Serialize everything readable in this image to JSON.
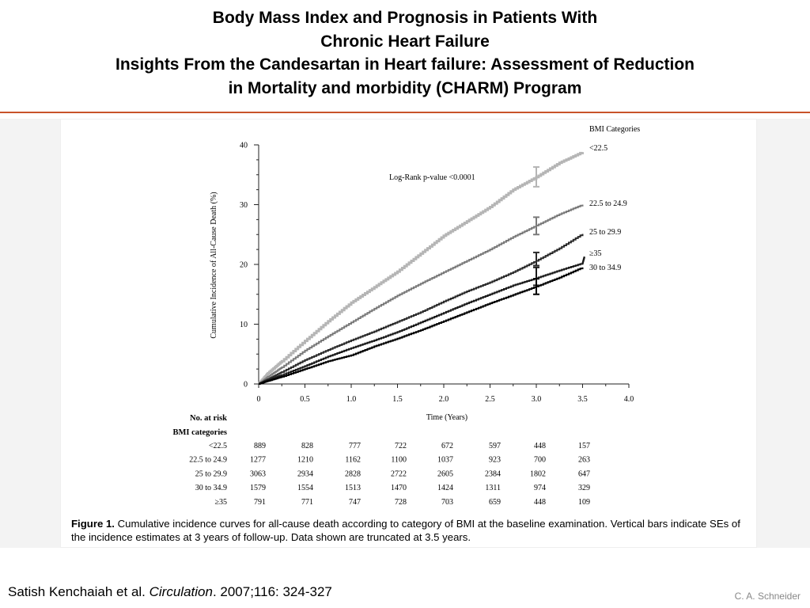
{
  "slide": {
    "title_lines": [
      "Body Mass Index and Prognosis in Patients With",
      "Chronic Heart Failure",
      "Insights From the Candesartan in Heart failure: Assessment of Reduction",
      "in Mortality and morbidity (CHARM) Program"
    ],
    "citation_authors": "Satish Kenchaiah et al. ",
    "citation_journal": "Circulation",
    "citation_rest": ". 2007;116: 324-327",
    "author_mark": "C. A. Schneider",
    "accent_color": "#c8532a"
  },
  "chart_data": {
    "type": "line",
    "xlabel": "Time (Years)",
    "ylabel": "Cumulative Incidence of All-Cause Death (%)",
    "xlim": [
      0,
      4.0
    ],
    "ylim": [
      0,
      40
    ],
    "xticks": [
      "0",
      "0.5",
      "1.0",
      "1.5",
      "2.0",
      "2.5",
      "3.0",
      "3.5",
      "4.0"
    ],
    "yticks": [
      "0",
      "10",
      "20",
      "30",
      "40"
    ],
    "grid": false,
    "legend_title": "BMI Categories",
    "annotation": "Log-Rank p-value <0.0001",
    "series": [
      {
        "name": "<22.5",
        "color": "#b5b5b5",
        "x": [
          0,
          0.1,
          0.25,
          0.5,
          0.75,
          1.0,
          1.25,
          1.5,
          1.75,
          2.0,
          2.25,
          2.5,
          2.75,
          3.0,
          3.25,
          3.5
        ],
        "y": [
          0,
          1.8,
          3.8,
          7.2,
          10.5,
          13.6,
          16.2,
          18.8,
          21.8,
          24.8,
          27.2,
          29.6,
          32.5,
          34.6,
          37.0,
          38.8
        ],
        "error_bar_at_3yr": [
          33.0,
          36.3
        ]
      },
      {
        "name": "22.5 to 24.9",
        "color": "#7a7a7a",
        "x": [
          0,
          0.1,
          0.25,
          0.5,
          0.75,
          1.0,
          1.25,
          1.5,
          1.75,
          2.0,
          2.25,
          2.5,
          2.75,
          3.0,
          3.25,
          3.5
        ],
        "y": [
          0,
          1.2,
          2.8,
          5.6,
          8.0,
          10.3,
          12.6,
          14.8,
          16.8,
          18.7,
          20.6,
          22.5,
          24.6,
          26.5,
          28.4,
          30.0
        ],
        "error_bar_at_3yr": [
          25.0,
          27.9
        ]
      },
      {
        "name": "25 to 29.9",
        "color": "#2a2a2a",
        "x": [
          0,
          0.1,
          0.25,
          0.5,
          0.75,
          1.0,
          1.25,
          1.5,
          1.75,
          2.0,
          2.25,
          2.5,
          2.75,
          3.0,
          3.25,
          3.5
        ],
        "y": [
          0,
          0.8,
          2.0,
          4.0,
          5.7,
          7.3,
          8.8,
          10.4,
          12.0,
          13.8,
          15.5,
          17.0,
          18.7,
          20.6,
          22.7,
          25.1
        ],
        "error_bar_at_3yr": [
          19.8,
          22.0
        ]
      },
      {
        "name": "≥35",
        "color": "#1a1a1a",
        "x": [
          0,
          0.1,
          0.25,
          0.5,
          0.75,
          1.0,
          1.25,
          1.5,
          1.75,
          2.0,
          2.25,
          2.5,
          2.75,
          3.0,
          3.25,
          3.5,
          3.52
        ],
        "y": [
          0,
          0.6,
          1.5,
          3.0,
          4.6,
          6.0,
          7.3,
          8.7,
          10.3,
          11.9,
          13.5,
          15.0,
          16.5,
          17.7,
          19.0,
          20.2,
          21.3
        ],
        "error_bar_at_3yr": [
          16.5,
          19.5
        ]
      },
      {
        "name": "30 to 34.9",
        "color": "#000000",
        "x": [
          0,
          0.1,
          0.25,
          0.5,
          0.75,
          1.0,
          1.25,
          1.5,
          1.75,
          2.0,
          2.25,
          2.5,
          2.75,
          3.0,
          3.25,
          3.5
        ],
        "y": [
          0,
          0.5,
          1.2,
          2.5,
          3.8,
          4.8,
          6.3,
          7.6,
          9.0,
          10.5,
          12.0,
          13.5,
          14.9,
          16.3,
          17.8,
          19.5
        ],
        "error_bar_at_3yr": [
          15.0,
          17.6
        ]
      }
    ],
    "risk_table": {
      "header": "No. at risk",
      "subheader": "BMI categories",
      "rows": [
        {
          "label": "<22.5",
          "values": [
            "889",
            "828",
            "777",
            "722",
            "672",
            "597",
            "448",
            "157"
          ]
        },
        {
          "label": "22.5 to 24.9",
          "values": [
            "1277",
            "1210",
            "1162",
            "1100",
            "1037",
            "923",
            "700",
            "263"
          ]
        },
        {
          "label": "25 to 29.9",
          "values": [
            "3063",
            "2934",
            "2828",
            "2722",
            "2605",
            "2384",
            "1802",
            "647"
          ]
        },
        {
          "label": "30 to 34.9",
          "values": [
            "1579",
            "1554",
            "1513",
            "1470",
            "1424",
            "1311",
            "974",
            "329"
          ]
        },
        {
          "label": "≥35",
          "values": [
            "791",
            "771",
            "747",
            "728",
            "703",
            "659",
            "448",
            "109"
          ]
        }
      ]
    },
    "caption_label": "Figure 1.",
    "caption_text": " Cumulative incidence curves for all-cause death according to category of BMI at the baseline examination. Vertical bars indicate SEs of the incidence estimates at 3 years of follow-up. Data shown are truncated at 3.5 years."
  }
}
